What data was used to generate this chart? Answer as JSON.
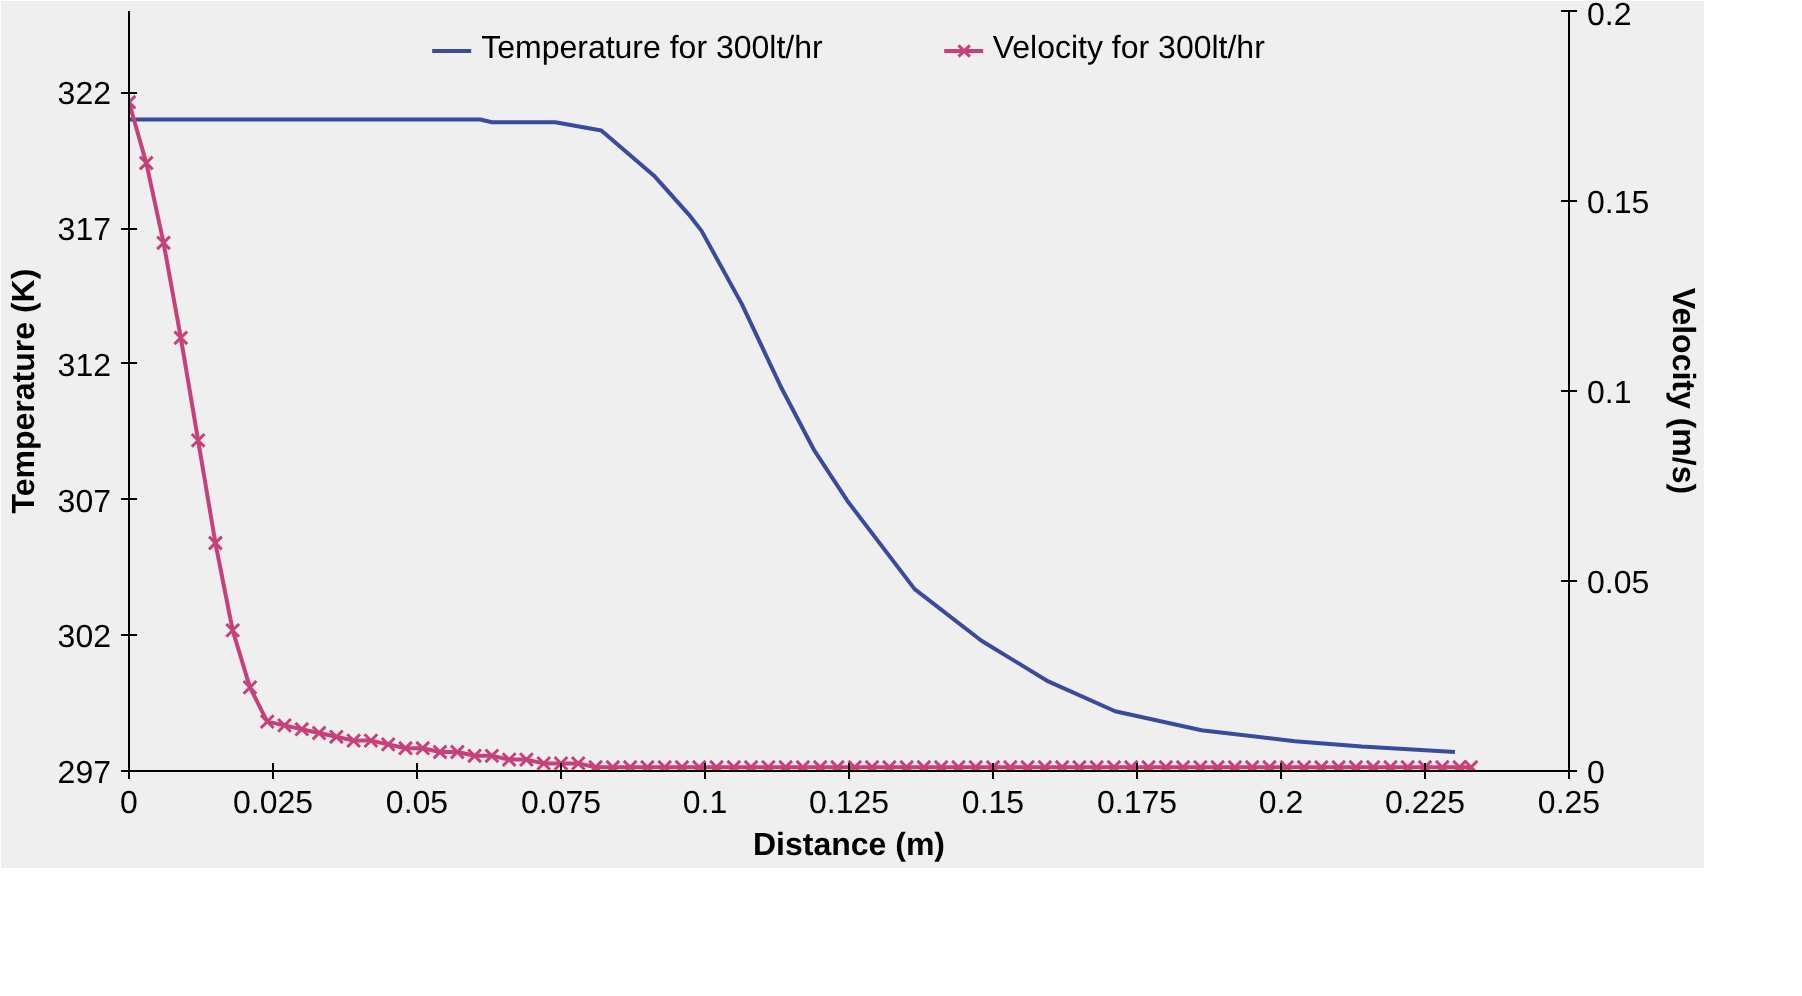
{
  "chart_data": {
    "type": "line",
    "xlabel": "Distance (m)",
    "ylabel": "Temperature (K)",
    "y2label": "Velocity (m/s)",
    "xlim": [
      0,
      0.25
    ],
    "xticks": [
      0,
      0.025,
      0.05,
      0.075,
      0.1,
      0.125,
      0.15,
      0.175,
      0.2,
      0.225,
      0.25
    ],
    "ylim": [
      297,
      325
    ],
    "yticks": [
      297,
      302,
      307,
      312,
      317,
      322
    ],
    "y2lim": [
      0,
      0.2
    ],
    "y2ticks": [
      0,
      0.05,
      0.1,
      0.15,
      0.2
    ],
    "grid": false,
    "legend": "top",
    "series": [
      {
        "name": "Temperature for 300lt/hr",
        "color": "#3a4a9c",
        "marker": "none",
        "x": [
          0,
          0.02,
          0.04,
          0.061,
          0.063,
          0.074,
          0.082,
          0.0913,
          0.0972,
          0.0994,
          0.1064,
          0.1133,
          0.119,
          0.1249,
          0.1364,
          0.148,
          0.1596,
          0.1712,
          0.1862,
          0.2024,
          0.214,
          0.2302
        ],
        "values": [
          321.0,
          321.0,
          321.0,
          321.0,
          320.9,
          320.9,
          320.6,
          318.9,
          317.5,
          316.9,
          314.2,
          311.1,
          308.8,
          306.9,
          303.7,
          301.8,
          300.3,
          299.2,
          298.5,
          298.1,
          297.9,
          297.7
        ]
      },
      {
        "name": "Velocity for 300lt/hr",
        "color": "#c8407a",
        "marker": "cross",
        "axis": "y2",
        "x": [
          0,
          0.003,
          0.006,
          0.009,
          0.012,
          0.015,
          0.018,
          0.021,
          0.024,
          0.027,
          0.03,
          0.033,
          0.036,
          0.039,
          0.042,
          0.045,
          0.048,
          0.051,
          0.054,
          0.057,
          0.06,
          0.063,
          0.066,
          0.069,
          0.072,
          0.075,
          0.078,
          0.081,
          0.084,
          0.087,
          0.09,
          0.093,
          0.096,
          0.099,
          0.102,
          0.105,
          0.108,
          0.111,
          0.114,
          0.117,
          0.12,
          0.123,
          0.126,
          0.129,
          0.132,
          0.135,
          0.138,
          0.141,
          0.144,
          0.147,
          0.15,
          0.153,
          0.156,
          0.159,
          0.162,
          0.165,
          0.168,
          0.171,
          0.174,
          0.177,
          0.18,
          0.183,
          0.186,
          0.189,
          0.192,
          0.195,
          0.198,
          0.201,
          0.204,
          0.207,
          0.21,
          0.213,
          0.216,
          0.219,
          0.222,
          0.225,
          0.228,
          0.231,
          0.233
        ],
        "values": [
          0.176,
          0.16,
          0.139,
          0.114,
          0.087,
          0.06,
          0.037,
          0.022,
          0.013,
          0.012,
          0.011,
          0.01,
          0.009,
          0.008,
          0.008,
          0.007,
          0.006,
          0.006,
          0.005,
          0.005,
          0.004,
          0.004,
          0.003,
          0.003,
          0.002,
          0.002,
          0.002,
          0.001,
          0.001,
          0.001,
          0.001,
          0.001,
          0.001,
          0.001,
          0.001,
          0.001,
          0.001,
          0.001,
          0.001,
          0.001,
          0.001,
          0.001,
          0.001,
          0.001,
          0.001,
          0.001,
          0.001,
          0.001,
          0.001,
          0.001,
          0.001,
          0.001,
          0.001,
          0.001,
          0.001,
          0.001,
          0.001,
          0.001,
          0.001,
          0.001,
          0.001,
          0.001,
          0.001,
          0.001,
          0.001,
          0.001,
          0.001,
          0.001,
          0.001,
          0.001,
          0.001,
          0.001,
          0.001,
          0.001,
          0.001,
          0.001,
          0.001,
          0.001,
          0.001
        ]
      }
    ]
  }
}
